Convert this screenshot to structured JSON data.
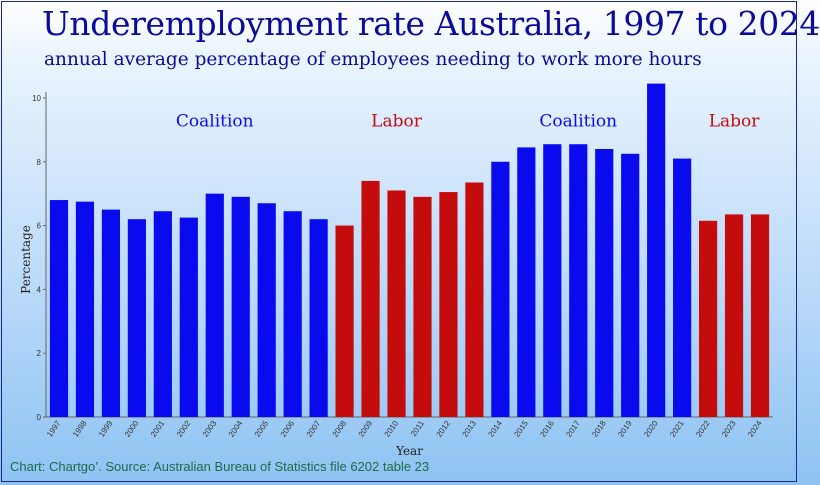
{
  "header": {
    "title": "Underemployment rate Australia, 1997 to 2024",
    "subtitle": "annual average percentage of employees needing to work more hours"
  },
  "footer": {
    "source": "Chart: Chartgo’. Source: Australian Bureau of Statistics file 6202 table 23"
  },
  "colors": {
    "coalition": "#0a0aee",
    "labor": "#c40c0c",
    "title": "#0b0b9a"
  },
  "chart_data": {
    "type": "bar",
    "xlabel": "Year",
    "ylabel": "Percentage",
    "ylim": [
      0,
      10.5
    ],
    "yticks": [
      0,
      2,
      4,
      6,
      8,
      10
    ],
    "grid": false,
    "categories": [
      "1997",
      "1998",
      "1999",
      "2000",
      "2001",
      "2002",
      "2003",
      "2004",
      "2005",
      "2006",
      "2007",
      "2008",
      "2009",
      "2010",
      "2011",
      "2012",
      "2013",
      "2014",
      "2015",
      "2016",
      "2017",
      "2018",
      "2019",
      "2020",
      "2021",
      "2022",
      "2023",
      "2024"
    ],
    "values": [
      6.8,
      6.75,
      6.5,
      6.2,
      6.45,
      6.25,
      7.0,
      6.9,
      6.7,
      6.45,
      6.2,
      6.0,
      7.4,
      7.1,
      6.9,
      7.05,
      7.35,
      8.0,
      8.45,
      8.55,
      8.55,
      8.4,
      8.25,
      10.45,
      8.1,
      6.15,
      6.35,
      6.35
    ],
    "bar_colors": [
      "#0a0aee",
      "#0a0aee",
      "#0a0aee",
      "#0a0aee",
      "#0a0aee",
      "#0a0aee",
      "#0a0aee",
      "#0a0aee",
      "#0a0aee",
      "#0a0aee",
      "#0a0aee",
      "#c40c0c",
      "#c40c0c",
      "#c40c0c",
      "#c40c0c",
      "#c40c0c",
      "#c40c0c",
      "#0a0aee",
      "#0a0aee",
      "#0a0aee",
      "#0a0aee",
      "#0a0aee",
      "#0a0aee",
      "#0a0aee",
      "#0a0aee",
      "#c40c0c",
      "#c40c0c",
      "#c40c0c"
    ],
    "annotations": [
      {
        "text": "Coalition",
        "category": "2003",
        "value": 9.1,
        "color": "#0a0aee"
      },
      {
        "text": "Labor",
        "category": "2010",
        "value": 9.1,
        "color": "#c40c0c"
      },
      {
        "text": "Coalition",
        "category": "2017",
        "value": 9.1,
        "color": "#0a0aee"
      },
      {
        "text": "Labor",
        "category": "2023",
        "value": 9.1,
        "color": "#c40c0c"
      }
    ]
  }
}
